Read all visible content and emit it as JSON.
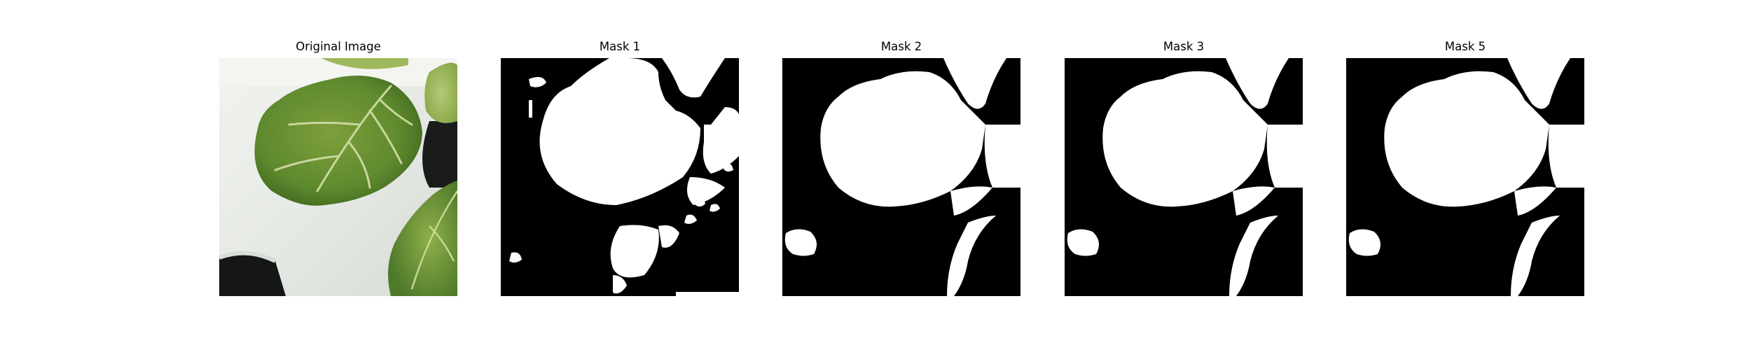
{
  "panels": [
    {
      "title": "Original Image",
      "kind": "photo"
    },
    {
      "title": "Mask 1",
      "kind": "mask"
    },
    {
      "title": "Mask 2",
      "kind": "mask"
    },
    {
      "title": "Mask 3",
      "kind": "mask"
    },
    {
      "title": "Mask 5",
      "kind": "mask"
    }
  ],
  "colors": {
    "background": "#ffffff",
    "mask_foreground": "#ffffff",
    "mask_background": "#000000",
    "leaf_dark": "#4f7a2a",
    "leaf_light": "#8fb04a",
    "tray_white": "#e9ece7",
    "shadow_dark": "#1a1c1b"
  }
}
